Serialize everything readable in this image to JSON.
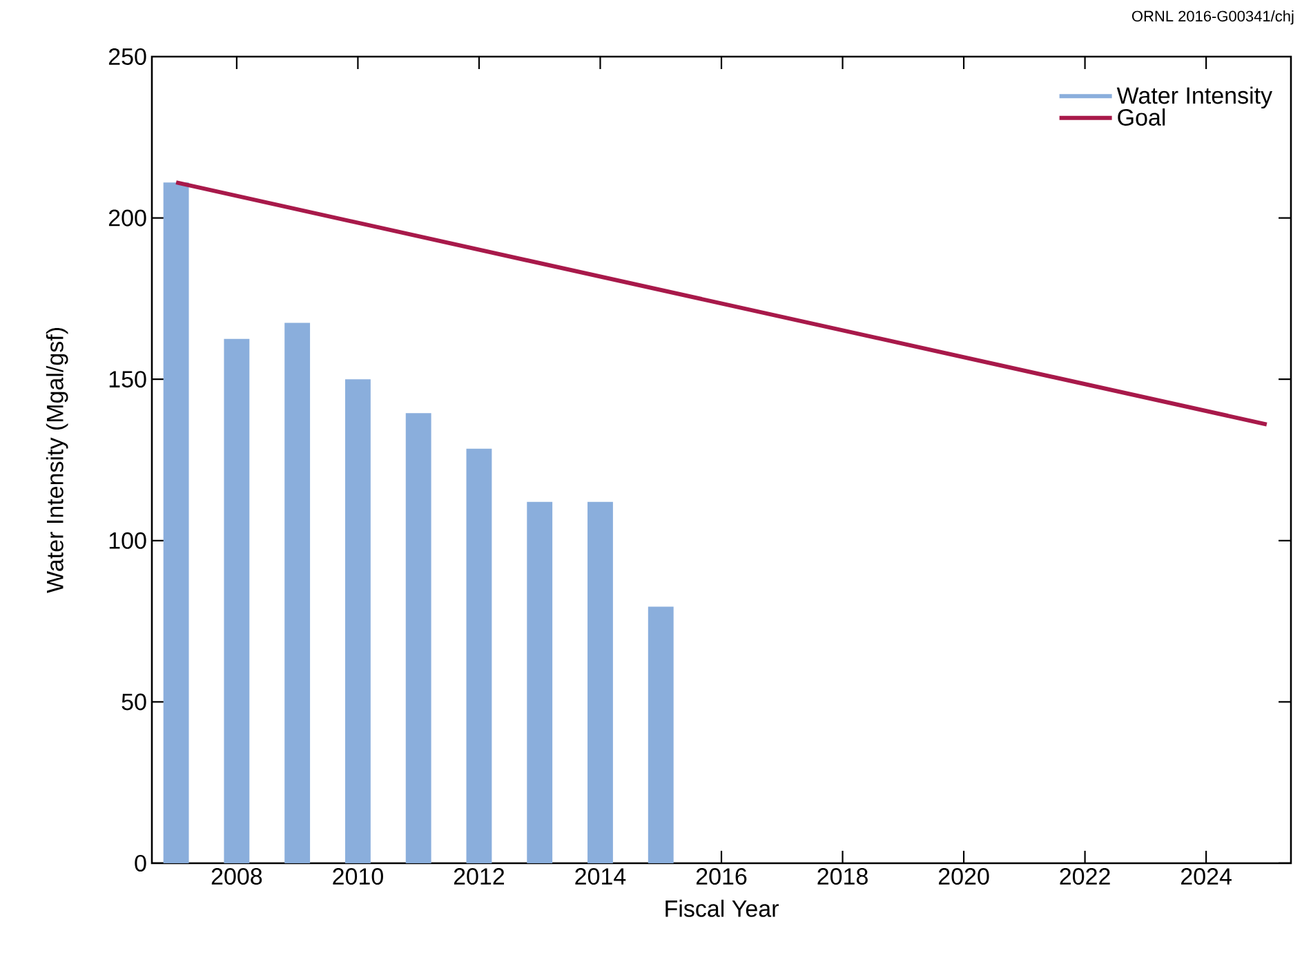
{
  "chart_data": {
    "type": "bar",
    "xlabel": "Fiscal Year",
    "ylabel": "Water Intensity (Mgal/gsf)",
    "xlim": [
      2006.6,
      2025.4
    ],
    "ylim": [
      0,
      250
    ],
    "xticks": [
      2008,
      2010,
      2012,
      2014,
      2016,
      2018,
      2020,
      2022,
      2024
    ],
    "yticks": [
      0,
      50,
      100,
      150,
      200,
      250
    ],
    "series": [
      {
        "name": "Water Intensity",
        "color": "#8aaedc",
        "x": [
          2007,
          2008,
          2009,
          2010,
          2011,
          2012,
          2013,
          2014,
          2015
        ],
        "values": [
          211,
          162.5,
          167.5,
          150,
          139.5,
          128.5,
          112,
          112,
          79.5
        ]
      },
      {
        "name": "Goal",
        "type": "line",
        "color": "#a8194a",
        "x": [
          2007,
          2025
        ],
        "values": [
          211,
          136
        ]
      }
    ],
    "legend": "top right",
    "grid": false,
    "annotations": [
      "ORNL 2016-G00341/chj"
    ]
  }
}
